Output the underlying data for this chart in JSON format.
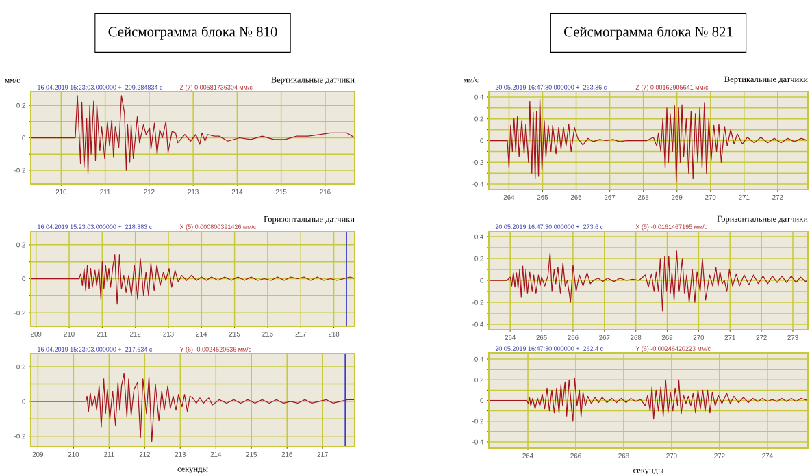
{
  "chart_data": [
    {
      "type": "line",
      "title": "Сейсмограмма блока № 810",
      "ylabel": "мм/с",
      "subtitle": "Вертикальные датчики",
      "annotations": [
        "16.04.2019 15:23:03.000000 +  209.284834 с",
        "Z (7) 0.00581736304 мм/с"
      ],
      "xlim": [
        209.31,
        216.67
      ],
      "ylim": [
        -0.285,
        0.285
      ],
      "xticks": [
        210,
        211,
        212,
        213,
        214,
        215,
        216
      ],
      "yticks": [
        -0.2,
        {
          "value": -0.1,
          "label": null
        },
        0,
        {
          "value": 0.1,
          "label": null
        },
        0.2
      ],
      "grid": true,
      "series": [
        {
          "color": "#a3141c",
          "x": [
            209.31,
            210.32,
            210.37,
            210.44,
            210.47,
            210.52,
            210.58,
            210.61,
            210.65,
            210.68,
            210.74,
            210.78,
            210.81,
            210.88,
            210.92,
            210.99,
            211.05,
            211.1,
            211.15,
            211.19,
            211.23,
            211.31,
            211.37,
            211.44,
            211.48,
            211.51,
            211.56,
            211.59,
            211.64,
            211.73,
            211.78,
            211.87,
            211.93,
            212.01,
            212.04,
            212.12,
            212.18,
            212.24,
            212.3,
            212.38,
            212.43,
            212.52,
            212.6,
            212.65,
            212.81,
            212.94,
            213.06,
            213.15,
            213.2,
            213.27,
            213.33,
            213.48,
            213.59,
            213.79,
            214.05,
            214.31,
            214.57,
            214.83,
            215.09,
            215.35,
            215.61,
            215.87,
            216.12,
            216.33,
            216.49,
            216.67
          ],
          "values": [
            0,
            0,
            0.26,
            -0.16,
            0.22,
            -0.18,
            0.12,
            -0.22,
            0.2,
            -0.1,
            0.23,
            -0.14,
            0.2,
            -0.08,
            0.07,
            -0.13,
            0.1,
            -0.05,
            0.11,
            -0.12,
            0.07,
            -0.06,
            0.26,
            0.15,
            -0.2,
            0.08,
            -0.15,
            0.08,
            -0.13,
            0.13,
            -0.03,
            0.08,
            0.02,
            0.06,
            -0.07,
            0.09,
            -0.1,
            0.05,
            0,
            0.1,
            -0.09,
            0.04,
            0.03,
            -0.03,
            0.02,
            -0.02,
            0.02,
            -0.04,
            0.03,
            -0.02,
            0.02,
            0.01,
            0.01,
            -0.02,
            0,
            -0.01,
            0.01,
            -0.01,
            -0.01,
            0.01,
            0.01,
            0.02,
            0.03,
            0.03,
            0.03,
            0
          ]
        }
      ]
    },
    {
      "type": "line",
      "subtitle": "Горизонтальные датчики",
      "annotations": [
        "16.04.2019 15:23:03.000000 +  218.383 с",
        "X (5) 0.000800391426 мм/с"
      ],
      "xlim": [
        208.84,
        218.63
      ],
      "ylim": [
        -0.28,
        0.28
      ],
      "xticks": [
        209,
        210,
        211,
        212,
        213,
        214,
        215,
        216,
        217,
        218
      ],
      "yticks": [
        -0.2,
        {
          "value": -0.1,
          "label": null
        },
        0,
        {
          "value": 0.1,
          "label": null
        },
        0.2
      ],
      "grid": true,
      "ref_lines": [
        {
          "axis": "x",
          "value": 218.383,
          "color": "#3c3cc8"
        }
      ],
      "series": [
        {
          "color": "#a3141c",
          "x": [
            208.84,
            210.3,
            210.35,
            210.4,
            210.45,
            210.5,
            210.55,
            210.6,
            210.65,
            210.7,
            210.78,
            210.83,
            210.9,
            210.96,
            211.0,
            211.05,
            211.1,
            211.15,
            211.2,
            211.25,
            211.32,
            211.38,
            211.45,
            211.52,
            211.58,
            211.65,
            211.72,
            211.8,
            211.88,
            211.97,
            212.07,
            212.15,
            212.25,
            212.32,
            212.4,
            212.47,
            212.57,
            212.65,
            212.75,
            212.85,
            212.92,
            213.02,
            213.1,
            213.2,
            213.3,
            213.4,
            213.55,
            213.7,
            213.85,
            214.0,
            214.15,
            214.3,
            214.5,
            214.7,
            214.9,
            215.1,
            215.3,
            215.5,
            215.7,
            215.9,
            216.1,
            216.3,
            216.5,
            216.7,
            216.9,
            217.1,
            217.3,
            217.5,
            217.7,
            217.9,
            218.1,
            218.3,
            218.5,
            218.63
          ],
          "values": [
            0,
            0,
            0.03,
            -0.04,
            0.06,
            -0.07,
            0.08,
            -0.06,
            0.06,
            -0.05,
            0.05,
            -0.04,
            0.06,
            -0.12,
            0.1,
            -0.06,
            0.08,
            -0.02,
            0.06,
            -0.05,
            0.07,
            0.14,
            -0.15,
            0.14,
            -0.06,
            0.02,
            -0.08,
            0.02,
            -0.1,
            0.08,
            -0.12,
            0.12,
            -0.1,
            0.04,
            -0.1,
            0.09,
            -0.07,
            0.08,
            -0.04,
            0.04,
            -0.01,
            0.06,
            -0.05,
            0.05,
            -0.02,
            0.02,
            -0.01,
            0.02,
            -0.01,
            0.01,
            -0.01,
            0.01,
            -0.01,
            0.01,
            -0.01,
            0.01,
            -0.01,
            0.01,
            -0.01,
            0,
            -0.01,
            0.01,
            -0.01,
            0.01,
            0,
            0.01,
            -0.01,
            0.01,
            -0.01,
            0,
            -0.01,
            0,
            0.01,
            0
          ]
        }
      ]
    },
    {
      "type": "line",
      "xlabel": "секунды",
      "annotations": [
        "16.04.2019 15:23:03.000000 +  217.634 с",
        "Y (6) -0.0024520536 мм/с"
      ],
      "xlim": [
        208.8,
        217.9
      ],
      "ylim": [
        -0.26,
        0.275
      ],
      "xticks": [
        209,
        210,
        211,
        212,
        213,
        214,
        215,
        216,
        217
      ],
      "yticks": [
        -0.2,
        {
          "value": -0.1,
          "label": null
        },
        0,
        {
          "value": 0.1,
          "label": null
        },
        0.2
      ],
      "grid": true,
      "ref_lines": [
        {
          "axis": "x",
          "value": 217.634,
          "color": "#3c3cc8"
        }
      ],
      "series": [
        {
          "color": "#a3141c",
          "x": [
            208.8,
            210.35,
            210.38,
            210.42,
            210.47,
            210.52,
            210.6,
            210.65,
            210.72,
            210.78,
            210.85,
            210.9,
            210.95,
            211.02,
            211.1,
            211.18,
            211.25,
            211.3,
            211.35,
            211.42,
            211.5,
            211.55,
            211.62,
            211.7,
            211.8,
            211.88,
            211.95,
            212.05,
            212.12,
            212.2,
            212.3,
            212.4,
            212.48,
            212.55,
            212.65,
            212.72,
            212.8,
            212.88,
            212.95,
            213.05,
            213.12,
            213.2,
            213.27,
            213.35,
            213.45,
            213.55,
            213.65,
            213.8,
            213.9,
            214.1,
            214.3,
            214.5,
            214.7,
            214.9,
            215.1,
            215.3,
            215.5,
            215.7,
            215.9,
            216.1,
            216.3,
            216.5,
            216.7,
            216.9,
            217.1,
            217.3,
            217.5,
            217.7,
            217.9
          ],
          "values": [
            0,
            0,
            0.03,
            -0.06,
            0.05,
            -0.03,
            0.03,
            -0.05,
            0.09,
            -0.15,
            0.13,
            -0.07,
            0.07,
            -0.1,
            0.06,
            -0.14,
            0.11,
            -0.05,
            0.09,
            0.16,
            -0.09,
            0.13,
            -0.08,
            0.07,
            0.11,
            -0.21,
            0.13,
            -0.07,
            0.14,
            -0.23,
            0.1,
            -0.11,
            0.06,
            -0.05,
            0.09,
            -0.04,
            0.03,
            -0.05,
            0.04,
            -0.03,
            0.04,
            -0.06,
            0.03,
            0.02,
            -0.01,
            0.02,
            -0.01,
            0.02,
            -0.02,
            0.01,
            -0.01,
            0.01,
            -0.01,
            0.01,
            -0.01,
            0.01,
            -0.01,
            0.01,
            -0.01,
            0,
            -0.01,
            0.01,
            -0.01,
            0,
            0.01,
            -0.01,
            0,
            0.01,
            0.01
          ]
        }
      ]
    },
    {
      "type": "line",
      "title": "Сейсмограмма блока № 821",
      "ylabel": "мм/с",
      "subtitle": "Вертикальные датчики",
      "annotations": [
        "20.05.2019 16:47:30.000000 +  263.36 с",
        "Z (7) 0.00162905641 мм/с"
      ],
      "xlim": [
        263.4,
        272.9
      ],
      "ylim": [
        -0.45,
        0.45
      ],
      "xticks": [
        264,
        265,
        266,
        267,
        268,
        269,
        270,
        271,
        272
      ],
      "yticks": [
        -0.4,
        {
          "value": -0.3,
          "label": null
        },
        -0.2,
        {
          "value": -0.1,
          "label": null
        },
        0,
        {
          "value": 0.1,
          "label": null
        },
        0.2,
        {
          "value": 0.3,
          "label": null
        },
        0.4
      ],
      "grid": true,
      "series": [
        {
          "color": "#a3141c",
          "x": [
            263.4,
            263.95,
            264.0,
            264.05,
            264.1,
            264.15,
            264.2,
            264.25,
            264.3,
            264.38,
            264.45,
            264.5,
            264.58,
            264.62,
            264.68,
            264.72,
            264.78,
            264.82,
            264.88,
            264.92,
            264.98,
            265.05,
            265.1,
            265.17,
            265.25,
            265.3,
            265.4,
            265.48,
            265.55,
            265.62,
            265.7,
            265.78,
            265.85,
            265.95,
            266.05,
            266.2,
            266.35,
            266.5,
            266.7,
            266.9,
            267.1,
            267.3,
            267.5,
            267.7,
            267.9,
            268.1,
            268.3,
            268.4,
            268.45,
            268.52,
            268.58,
            268.65,
            268.7,
            268.75,
            268.8,
            268.87,
            268.93,
            268.98,
            269.05,
            269.1,
            269.15,
            269.2,
            269.28,
            269.35,
            269.42,
            269.48,
            269.55,
            269.62,
            269.68,
            269.75,
            269.82,
            269.88,
            269.95,
            270.02,
            270.1,
            270.18,
            270.25,
            270.32,
            270.42,
            270.5,
            270.6,
            270.7,
            270.8,
            270.95,
            271.1,
            271.3,
            271.5,
            271.7,
            271.9,
            272.1,
            272.3,
            272.5,
            272.7,
            272.9
          ],
          "values": [
            0,
            0,
            -0.25,
            0.14,
            -0.1,
            0.2,
            -0.1,
            0.22,
            -0.15,
            0.18,
            -0.12,
            0.15,
            -0.2,
            0.36,
            -0.3,
            0.26,
            -0.35,
            0.27,
            -0.33,
            0.38,
            -0.27,
            0.18,
            -0.15,
            0.14,
            -0.1,
            0.14,
            -0.12,
            0.12,
            -0.08,
            0.12,
            -0.05,
            0.15,
            -0.1,
            0.12,
            0.02,
            -0.04,
            0.02,
            -0.01,
            0.01,
            0,
            0.01,
            -0.01,
            0,
            0,
            0,
            0,
            0.03,
            -0.05,
            0.07,
            -0.1,
            0.2,
            -0.25,
            0.3,
            -0.2,
            0.25,
            -0.1,
            0.32,
            -0.38,
            0.3,
            -0.2,
            0.33,
            -0.15,
            0.2,
            -0.3,
            0.27,
            -0.35,
            0.25,
            -0.2,
            0.3,
            -0.25,
            0.35,
            -0.3,
            0.2,
            -0.18,
            0.14,
            -0.1,
            0.15,
            -0.2,
            0.13,
            -0.05,
            0.1,
            -0.03,
            0.06,
            -0.03,
            0.03,
            -0.02,
            0.03,
            -0.02,
            0.02,
            -0.02,
            0.02,
            -0.01,
            0.02,
            0
          ]
        }
      ]
    },
    {
      "type": "line",
      "subtitle": "Горизонтальные датчики",
      "annotations": [
        "20.05.2019 16:47:30.000000 +  273.6 с",
        "X (5) -0.0161467195 мм/с"
      ],
      "xlim": [
        263.32,
        273.48
      ],
      "ylim": [
        -0.45,
        0.45
      ],
      "xticks": [
        264,
        265,
        266,
        267,
        268,
        269,
        270,
        271,
        272,
        273
      ],
      "yticks": [
        -0.4,
        {
          "value": -0.3,
          "label": null
        },
        -0.2,
        {
          "value": -0.1,
          "label": null
        },
        0,
        {
          "value": 0.1,
          "label": null
        },
        0.2,
        {
          "value": 0.3,
          "label": null
        },
        0.4
      ],
      "grid": true,
      "series": [
        {
          "color": "#a3141c",
          "x": [
            263.32,
            263.9,
            264.0,
            264.05,
            264.1,
            264.15,
            264.2,
            264.25,
            264.3,
            264.35,
            264.4,
            264.45,
            264.5,
            264.55,
            264.62,
            264.7,
            264.75,
            264.82,
            264.9,
            264.95,
            265.0,
            265.1,
            265.2,
            265.27,
            265.33,
            265.4,
            265.45,
            265.52,
            265.6,
            265.68,
            265.75,
            265.82,
            265.92,
            266.0,
            266.1,
            266.2,
            266.32,
            266.45,
            266.55,
            266.65,
            266.8,
            266.95,
            267.1,
            267.3,
            267.5,
            267.7,
            267.9,
            268.1,
            268.3,
            268.4,
            268.5,
            268.58,
            268.65,
            268.72,
            268.78,
            268.85,
            268.92,
            268.98,
            269.05,
            269.1,
            269.15,
            269.22,
            269.3,
            269.38,
            269.48,
            269.55,
            269.62,
            269.7,
            269.8,
            269.88,
            269.95,
            270.05,
            270.12,
            270.22,
            270.35,
            270.45,
            270.55,
            270.62,
            270.68,
            270.75,
            270.82,
            270.9,
            270.98,
            271.08,
            271.2,
            271.3,
            271.45,
            271.6,
            271.75,
            271.9,
            272.05,
            272.2,
            272.35,
            272.5,
            272.65,
            272.8,
            272.95,
            273.1,
            273.25,
            273.4,
            273.48
          ],
          "values": [
            0,
            0,
            0.03,
            -0.05,
            0.07,
            -0.06,
            0.07,
            -0.07,
            0.1,
            -0.15,
            0.13,
            -0.1,
            0.1,
            -0.12,
            0.08,
            -0.1,
            0.05,
            -0.12,
            0.05,
            -0.05,
            0.03,
            -0.05,
            0.04,
            0.25,
            -0.1,
            0.1,
            -0.03,
            0.12,
            -0.12,
            0.16,
            -0.05,
            0,
            -0.2,
            0.14,
            -0.1,
            0.05,
            -0.05,
            0.07,
            -0.03,
            0,
            0.02,
            -0.01,
            0.02,
            -0.01,
            0.02,
            0,
            0.01,
            0,
            0.05,
            -0.06,
            0.06,
            -0.1,
            0.08,
            -0.1,
            0.2,
            -0.28,
            0.22,
            -0.1,
            0.22,
            -0.12,
            0.07,
            -0.18,
            0.27,
            -0.1,
            0.2,
            -0.12,
            0.05,
            -0.2,
            0.1,
            -0.2,
            0.08,
            -0.1,
            0.2,
            -0.18,
            0.05,
            -0.05,
            0.12,
            -0.05,
            0.08,
            -0.03,
            0,
            -0.1,
            0.1,
            -0.05,
            0.06,
            -0.05,
            0.05,
            -0.04,
            0.05,
            -0.03,
            0.04,
            -0.03,
            0.04,
            -0.02,
            0.04,
            -0.02,
            0.04,
            -0.02,
            0.03,
            -0.01,
            0
          ]
        }
      ]
    },
    {
      "type": "line",
      "xlabel": "секунды",
      "annotations": [
        "20.05.2019 16:47:30.000000 +  262.4 с",
        "Y (6) -0.00246420223 мм/с"
      ],
      "xlim": [
        262.37,
        275.69
      ],
      "ylim": [
        -0.46,
        0.46
      ],
      "xticks": [
        264,
        266,
        268,
        270,
        272,
        274
      ],
      "yticks": [
        -0.4,
        {
          "value": -0.3,
          "label": null
        },
        -0.2,
        {
          "value": -0.1,
          "label": null
        },
        0,
        {
          "value": 0.1,
          "label": null
        },
        0.2,
        {
          "value": 0.3,
          "label": null
        },
        0.4
      ],
      "grid": true,
      "series": [
        {
          "color": "#a3141c",
          "x": [
            262.37,
            263.95,
            264.02,
            264.07,
            264.12,
            264.2,
            264.3,
            264.4,
            264.5,
            264.6,
            264.7,
            264.8,
            264.9,
            265.0,
            265.1,
            265.2,
            265.3,
            265.38,
            265.45,
            265.55,
            265.62,
            265.72,
            265.82,
            265.88,
            265.95,
            266.05,
            266.15,
            266.22,
            266.3,
            266.4,
            266.5,
            266.65,
            266.8,
            266.95,
            267.1,
            267.3,
            267.5,
            267.7,
            267.9,
            268.1,
            268.3,
            268.5,
            268.7,
            268.9,
            269.0,
            269.1,
            269.18,
            269.25,
            269.35,
            269.45,
            269.55,
            269.65,
            269.75,
            269.85,
            269.95,
            270.05,
            270.15,
            270.25,
            270.3,
            270.4,
            270.5,
            270.6,
            270.7,
            270.8,
            270.9,
            271.0,
            271.1,
            271.2,
            271.3,
            271.4,
            271.5,
            271.6,
            271.7,
            271.82,
            271.95,
            272.1,
            272.3,
            272.45,
            272.6,
            272.8,
            273.0,
            273.2,
            273.4,
            273.6,
            273.8,
            274.0,
            274.2,
            274.4,
            274.6,
            274.8,
            275.0,
            275.2,
            275.4,
            275.69
          ],
          "values": [
            0,
            0,
            -0.03,
            0.03,
            -0.05,
            0.02,
            -0.08,
            0.02,
            -0.05,
            0.06,
            -0.08,
            0.12,
            -0.1,
            0.1,
            -0.12,
            0.12,
            -0.12,
            0.15,
            -0.05,
            0.18,
            -0.15,
            0.2,
            -0.07,
            -0.2,
            0.22,
            -0.05,
            0.1,
            -0.16,
            0.08,
            -0.05,
            0.04,
            -0.03,
            0.03,
            -0.02,
            0.03,
            -0.02,
            0.02,
            -0.02,
            0.02,
            -0.02,
            0.02,
            -0.01,
            0.01,
            -0.05,
            0.05,
            -0.1,
            0.13,
            -0.18,
            0.1,
            -0.1,
            0.13,
            -0.15,
            0.2,
            -0.12,
            0.08,
            -0.1,
            0.12,
            -0.05,
            0.2,
            -0.13,
            0.05,
            -0.03,
            0.04,
            -0.05,
            0.07,
            -0.12,
            0.1,
            -0.08,
            0.1,
            -0.1,
            0.1,
            -0.12,
            0.08,
            -0.05,
            0.05,
            -0.03,
            0.07,
            -0.03,
            0.04,
            -0.02,
            0.03,
            -0.02,
            0.02,
            -0.01,
            0.02,
            -0.01,
            0.01,
            -0.01,
            0.02,
            -0.01,
            0.02,
            -0.01,
            0.02,
            0
          ]
        }
      ]
    }
  ]
}
